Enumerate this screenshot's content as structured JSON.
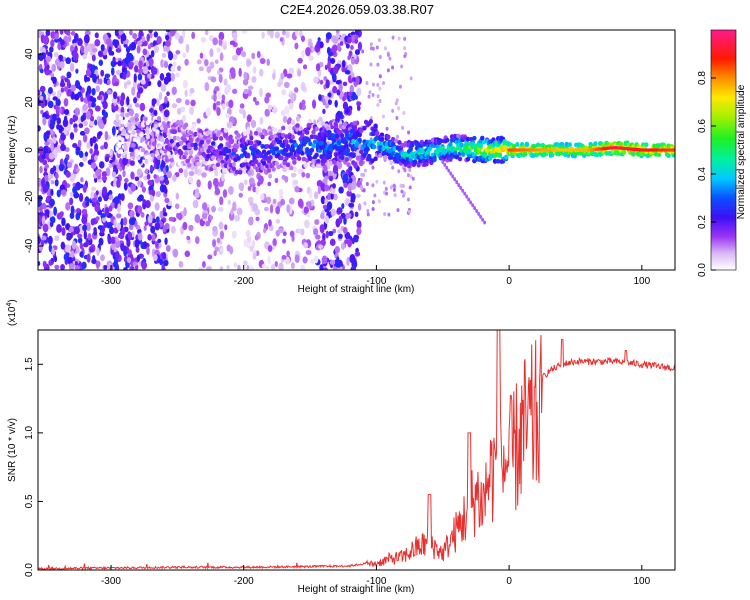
{
  "page_title": "C2E4.2026.059.03.38.R07",
  "chart_data": [
    {
      "type": "heatmap",
      "title": "C2E4.2026.059.03.38.R07",
      "xlabel": "Height of straight line (km)",
      "ylabel": "Frequency (Hz)",
      "xlim": [
        -355,
        125
      ],
      "ylim": [
        -50,
        50
      ],
      "x_ticks": [
        -300,
        -200,
        -100,
        0,
        100
      ],
      "x_tick_labels": [
        "-300",
        "-200",
        "-100",
        "0",
        "100"
      ],
      "y_ticks": [
        -40,
        -20,
        0,
        20,
        40
      ],
      "y_tick_labels": [
        "-40",
        "-20",
        "0",
        "20",
        "40"
      ],
      "colorbar": {
        "label": "Normalized spectral amplitude",
        "range": [
          0,
          1
        ],
        "ticks": [
          0,
          0.2,
          0.4,
          0.6,
          0.8
        ],
        "tick_labels": [
          "0.0",
          "0.2",
          "0.4",
          "0.6",
          "0.8"
        ]
      },
      "signal_ridge": {
        "description": "Noise dominated below about -110 km; a coherent ridge near 0 Hz strengthens above -100 km",
        "x": [
          -355,
          -300,
          -250,
          -200,
          -150,
          -110,
          -100,
          -80,
          -60,
          -40,
          -20,
          0,
          20,
          40,
          60,
          80,
          100,
          125
        ],
        "center_freq_hz": [
          10,
          7,
          3,
          -2,
          2,
          3,
          3,
          -2,
          -1,
          1,
          0,
          0,
          0,
          0,
          0,
          1,
          0,
          0
        ],
        "amplitude": [
          0.02,
          0.05,
          0.15,
          0.25,
          0.3,
          0.35,
          0.4,
          0.4,
          0.45,
          0.5,
          0.65,
          0.8,
          0.75,
          0.7,
          0.72,
          0.9,
          0.85,
          0.8
        ]
      }
    },
    {
      "type": "line",
      "xlabel": "Height of straight line (km)",
      "ylabel": "SNR (10 * v/v)",
      "scale_label": "(x10",
      "scale_exponent": "4",
      "xlim": [
        -355,
        125
      ],
      "ylim": [
        0,
        1.75
      ],
      "x_ticks": [
        -300,
        -200,
        -100,
        0,
        100
      ],
      "x_tick_labels": [
        "-300",
        "-200",
        "-100",
        "0",
        "100"
      ],
      "y_ticks": [
        0,
        0.5,
        1.0,
        1.5
      ],
      "y_tick_labels": [
        "0.0",
        "0.5",
        "1.0",
        "1.5"
      ],
      "series": [
        {
          "name": "SNR",
          "color": "#e8302f",
          "x": [
            -355,
            -300,
            -250,
            -200,
            -150,
            -120,
            -100,
            -90,
            -80,
            -70,
            -60,
            -50,
            -40,
            -30,
            -25,
            -20,
            -15,
            -10,
            -5,
            0,
            5,
            10,
            20,
            30,
            40,
            50,
            60,
            80,
            100,
            125
          ],
          "y": [
            0.01,
            0.015,
            0.02,
            0.02,
            0.025,
            0.03,
            0.06,
            0.1,
            0.12,
            0.2,
            0.25,
            0.15,
            0.35,
            0.55,
            0.7,
            0.6,
            0.85,
            0.95,
            0.95,
            1.0,
            1.1,
            1.25,
            1.35,
            1.45,
            1.5,
            1.52,
            1.52,
            1.52,
            1.5,
            1.47
          ]
        }
      ],
      "spike_peaks": [
        {
          "x": -60,
          "y": 0.55
        },
        {
          "x": -30,
          "y": 1.0
        },
        {
          "x": -8,
          "y": 1.75
        },
        {
          "x": 40,
          "y": 1.68
        },
        {
          "x": 88,
          "y": 1.6
        }
      ]
    }
  ]
}
